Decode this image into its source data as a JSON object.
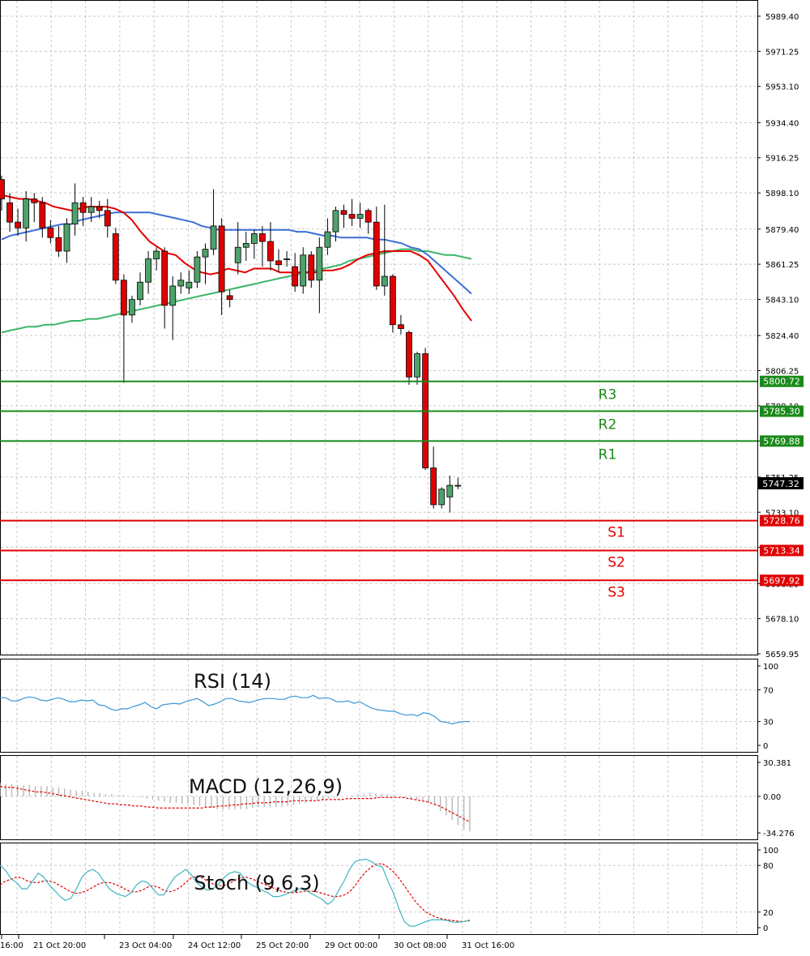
{
  "colors": {
    "bull": "#4ea26a",
    "bear": "#e00000",
    "sma_fast": "#e60000",
    "sma_mid": "#3b6fd6",
    "sma_slow": "#3cb46a",
    "resistance": "#1a8a1a",
    "support": "#e00000",
    "rsi": "#3a97d6",
    "macd_signal": "#e00000",
    "macd_hist": "#b8b8b8",
    "stoch_main": "#3fb6c0",
    "stoch_signal": "#e00000",
    "grid": "#c8c8c8"
  },
  "chart_data": [
    {
      "type": "candlestick",
      "name": "price",
      "ylim": [
        5659.95,
        5998.0
      ],
      "price_ticks": [
        "5989.40",
        "5971.25",
        "5953.10",
        "5934.40",
        "5916.25",
        "5898.10",
        "5879.40",
        "5861.25",
        "5843.10",
        "5824.40",
        "5806.25",
        "5788.10",
        "5769.95",
        "5751.25",
        "5733.10",
        "5714.95",
        "5696.25",
        "5678.10",
        "5659.95"
      ],
      "x_labels": [
        "16:00",
        "21 Oct 20:00",
        "23 Oct 04:00",
        "24 Oct 12:00",
        "25 Oct 20:00",
        "29 Oct 00:00",
        "30 Oct 08:00",
        "31 Oct 16:00"
      ],
      "current_price": "5747.32",
      "candles": [
        [
          5905,
          5907,
          5889,
          5895
        ],
        [
          5893,
          5898,
          5878,
          5883
        ],
        [
          5883,
          5890,
          5876,
          5880
        ],
        [
          5880,
          5899,
          5873,
          5895
        ],
        [
          5895,
          5898,
          5883,
          5893
        ],
        [
          5893,
          5896,
          5875,
          5880
        ],
        [
          5880,
          5884,
          5872,
          5875
        ],
        [
          5875,
          5881,
          5865,
          5868
        ],
        [
          5868,
          5885,
          5862,
          5882
        ],
        [
          5882,
          5903,
          5876,
          5893
        ],
        [
          5893,
          5896,
          5881,
          5888
        ],
        [
          5888,
          5896,
          5883,
          5891
        ],
        [
          5891,
          5894,
          5885,
          5889
        ],
        [
          5889,
          5895,
          5875,
          5881
        ],
        [
          5877,
          5880,
          5851,
          5853
        ],
        [
          5853,
          5856,
          5800,
          5835
        ],
        [
          5835,
          5845,
          5831,
          5843
        ],
        [
          5843,
          5857,
          5840,
          5852
        ],
        [
          5852,
          5868,
          5846,
          5864
        ],
        [
          5864,
          5870,
          5858,
          5868
        ],
        [
          5868,
          5870,
          5828,
          5840
        ],
        [
          5840,
          5855,
          5822,
          5850
        ],
        [
          5850,
          5857,
          5846,
          5853
        ],
        [
          5849,
          5858,
          5846,
          5852
        ],
        [
          5852,
          5868,
          5849,
          5865
        ],
        [
          5865,
          5872,
          5851,
          5869
        ],
        [
          5869,
          5900,
          5866,
          5881
        ],
        [
          5881,
          5885,
          5835,
          5847
        ],
        [
          5845,
          5848,
          5839,
          5843
        ],
        [
          5862,
          5883,
          5856,
          5870
        ],
        [
          5870,
          5878,
          5863,
          5872
        ],
        [
          5872,
          5879,
          5864,
          5877
        ],
        [
          5877,
          5881,
          5860,
          5873
        ],
        [
          5873,
          5883,
          5858,
          5863
        ],
        [
          5863,
          5869,
          5857,
          5861
        ],
        [
          5864,
          5868,
          5860,
          5864
        ],
        [
          5860,
          5867,
          5847,
          5850
        ],
        [
          5850,
          5870,
          5846,
          5866
        ],
        [
          5866,
          5868,
          5849,
          5853
        ],
        [
          5853,
          5875,
          5836,
          5870
        ],
        [
          5870,
          5885,
          5866,
          5878
        ],
        [
          5878,
          5891,
          5873,
          5889
        ],
        [
          5889,
          5892,
          5880,
          5887
        ],
        [
          5887,
          5895,
          5881,
          5885
        ],
        [
          5885,
          5893,
          5880,
          5887
        ],
        [
          5889,
          5890,
          5877,
          5883
        ],
        [
          5883,
          5891,
          5848,
          5850
        ],
        [
          5850,
          5892,
          5845,
          5855
        ],
        [
          5855,
          5856,
          5826,
          5830
        ],
        [
          5830,
          5835,
          5825,
          5828
        ],
        [
          5826,
          5827,
          5799,
          5803
        ],
        [
          5803,
          5816,
          5799,
          5815
        ],
        [
          5815,
          5818,
          5755,
          5756
        ],
        [
          5756,
          5767,
          5735,
          5737
        ],
        [
          5737,
          5746,
          5735,
          5745
        ],
        [
          5741,
          5752,
          5733,
          5747
        ],
        [
          5747,
          5751,
          5745,
          5747
        ]
      ],
      "sma_fast": [
        5897,
        5896,
        5895,
        5895,
        5894,
        5893,
        5891,
        5890,
        5889,
        5890,
        5891,
        5891,
        5891,
        5890,
        5888,
        5884,
        5878,
        5873,
        5870,
        5867,
        5866,
        5862,
        5859,
        5857,
        5856,
        5857,
        5859,
        5858,
        5857,
        5859,
        5859,
        5859,
        5857,
        5857,
        5857,
        5857,
        5857,
        5858,
        5858,
        5859,
        5861,
        5864,
        5866,
        5867,
        5868,
        5868,
        5868,
        5868,
        5866,
        5863,
        5857,
        5851,
        5845,
        5838,
        5832
      ],
      "sma_mid": [
        5874,
        5876,
        5877,
        5878,
        5879,
        5880,
        5881,
        5882,
        5882,
        5884,
        5885,
        5886,
        5887,
        5888,
        5888,
        5888,
        5888,
        5888,
        5887,
        5886,
        5885,
        5884,
        5883,
        5881,
        5880,
        5879,
        5879,
        5879,
        5879,
        5879,
        5879,
        5879,
        5879,
        5879,
        5878,
        5878,
        5877,
        5876,
        5876,
        5875,
        5875,
        5875,
        5875,
        5874,
        5874,
        5873,
        5872,
        5870,
        5869,
        5866,
        5862,
        5858,
        5854,
        5850,
        5846
      ],
      "sma_slow": [
        5826,
        5827,
        5828,
        5829,
        5829,
        5830,
        5830,
        5831,
        5832,
        5832,
        5833,
        5833,
        5834,
        5835,
        5836,
        5837,
        5838,
        5839,
        5840,
        5841,
        5842,
        5843,
        5844,
        5845,
        5846,
        5847,
        5848,
        5849,
        5850,
        5851,
        5852,
        5853,
        5854,
        5855,
        5856,
        5857,
        5858,
        5859,
        5860,
        5861,
        5863,
        5864,
        5865,
        5866,
        5867,
        5868,
        5869,
        5869,
        5868,
        5868,
        5867,
        5866,
        5866,
        5865,
        5864
      ]
    },
    {
      "type": "line",
      "name": "RSI (14)",
      "ylim": [
        0,
        100
      ],
      "ticks": [
        "100",
        "70",
        "30",
        "0"
      ],
      "values": [
        60,
        60,
        56,
        56,
        59,
        61,
        60,
        57,
        56,
        58,
        60,
        58,
        55,
        55,
        57,
        56,
        57,
        51,
        50,
        46,
        44,
        46,
        46,
        49,
        51,
        54,
        49,
        46,
        51,
        52,
        53,
        52,
        55,
        57,
        59,
        55,
        50,
        52,
        55,
        59,
        59,
        56,
        55,
        54,
        56,
        58,
        59,
        59,
        58,
        58,
        61,
        62,
        60,
        60,
        63,
        59,
        60,
        59,
        55,
        55,
        56,
        53,
        55,
        51,
        47,
        45,
        44,
        43,
        43,
        40,
        38,
        39,
        37,
        41,
        40,
        36,
        30,
        29,
        27,
        29,
        30,
        30
      ]
    },
    {
      "type": "histogram",
      "name": "MACD (12,26,9)",
      "ylim": [
        -34.276,
        30.381
      ],
      "ticks": [
        "30.381",
        "0.00",
        "-34.276"
      ],
      "histogram": [
        12,
        11,
        11,
        10,
        10,
        10,
        9,
        9,
        9,
        8,
        8,
        7,
        6,
        5,
        5,
        4,
        3,
        3,
        2,
        2,
        1,
        1,
        0,
        0,
        -1,
        -2,
        -3,
        -4,
        -5,
        -6,
        -6,
        -7,
        -7,
        -8,
        -9,
        -10,
        -11,
        -12,
        -12,
        -12,
        -12,
        -12,
        -12,
        -11,
        -10,
        -10,
        -10,
        -10,
        -10,
        -9,
        -8,
        -7,
        -6,
        -5,
        -4,
        -3,
        -2,
        -1,
        0,
        0,
        1,
        2,
        2,
        3,
        3,
        2,
        2,
        1,
        0,
        -1,
        -2,
        -3,
        -4,
        -6,
        -9,
        -14,
        -18,
        -22,
        -27,
        -31,
        -33
      ],
      "signal": [
        9,
        8,
        8,
        7,
        6,
        5,
        4,
        4,
        3,
        2,
        1,
        0,
        -1,
        -2,
        -3,
        -4,
        -5,
        -6,
        -7,
        -7,
        -8,
        -8,
        -9,
        -9,
        -10,
        -10,
        -11,
        -11,
        -11,
        -11,
        -11,
        -11,
        -11,
        -11,
        -10,
        -10,
        -9,
        -9,
        -8,
        -8,
        -7,
        -7,
        -6,
        -6,
        -6,
        -5,
        -5,
        -5,
        -4,
        -4,
        -4,
        -4,
        -4,
        -3,
        -3,
        -3,
        -3,
        -2,
        -2,
        -2,
        -2,
        -2,
        -1,
        -1,
        -1,
        -1,
        -1,
        -2,
        -3,
        -4,
        -5,
        -7,
        -9,
        -12,
        -15,
        -18,
        -21,
        -24
      ]
    },
    {
      "type": "line",
      "name": "Stoch (9,6,3)",
      "ylim": [
        0,
        100
      ],
      "ticks": [
        "100",
        "80",
        "20",
        "0"
      ],
      "main": [
        80,
        74,
        63,
        58,
        50,
        50,
        60,
        70,
        65,
        55,
        48,
        40,
        35,
        38,
        50,
        65,
        72,
        75,
        70,
        60,
        50,
        45,
        42,
        40,
        45,
        55,
        60,
        58,
        50,
        42,
        42,
        55,
        65,
        70,
        75,
        68,
        58,
        52,
        48,
        50,
        56,
        64,
        70,
        72,
        70,
        60,
        55,
        52,
        48,
        45,
        40,
        40,
        42,
        45,
        48,
        50,
        48,
        44,
        40,
        36,
        30,
        35,
        48,
        60,
        75,
        85,
        87,
        88,
        85,
        80,
        78,
        60,
        45,
        25,
        8,
        2,
        2,
        5,
        8,
        10,
        10,
        10,
        9,
        7,
        7,
        8,
        10
      ],
      "signal": [
        55,
        60,
        62,
        65,
        64,
        60,
        58,
        58,
        60,
        60,
        58,
        54,
        50,
        46,
        44,
        45,
        48,
        52,
        56,
        58,
        58,
        56,
        53,
        49,
        46,
        46,
        48,
        52,
        54,
        52,
        48,
        46,
        48,
        52,
        58,
        64,
        66,
        64,
        60,
        56,
        54,
        54,
        57,
        61,
        64,
        65,
        63,
        60,
        57,
        54,
        51,
        48,
        46,
        45,
        45,
        46,
        47,
        47,
        46,
        44,
        42,
        40,
        40,
        42,
        46,
        54,
        64,
        72,
        78,
        82,
        82,
        78,
        72,
        64,
        54,
        44,
        34,
        26,
        20,
        16,
        13,
        11,
        10,
        9,
        8,
        8,
        9
      ]
    }
  ],
  "levels": {
    "resistance": [
      {
        "label": "R3",
        "price": "5800.72"
      },
      {
        "label": "R2",
        "price": "5785.30"
      },
      {
        "label": "R1",
        "price": "5769.88"
      }
    ],
    "support": [
      {
        "label": "S1",
        "price": "5728.76"
      },
      {
        "label": "S2",
        "price": "5713.34"
      },
      {
        "label": "S3",
        "price": "5697.92"
      }
    ]
  }
}
